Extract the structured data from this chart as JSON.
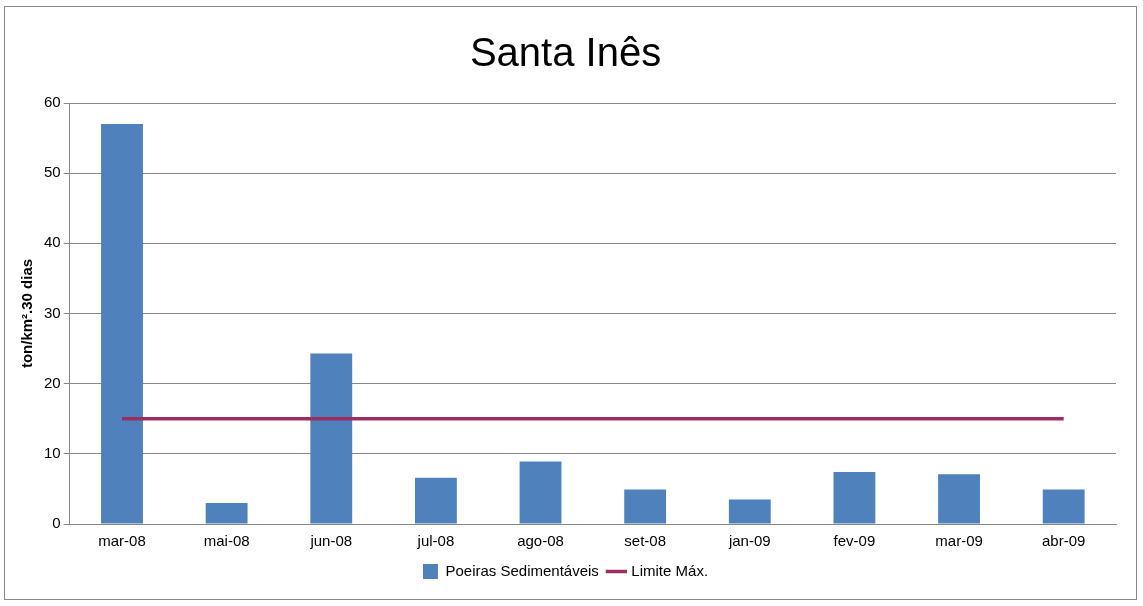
{
  "chart_data": {
    "type": "bar",
    "title": "Santa Inês",
    "ylabel": "ton/km².30 dias",
    "categories": [
      "mar-08",
      "mai-08",
      "jun-08",
      "jul-08",
      "ago-08",
      "set-08",
      "jan-09",
      "fev-09",
      "mar-09",
      "abr-09"
    ],
    "series": [
      {
        "name": "Poeiras Sedimentáveis",
        "color": "#4f81bd",
        "values": [
          57,
          3,
          24.3,
          6.6,
          8.9,
          4.9,
          3.5,
          7.4,
          7.1,
          4.9
        ]
      },
      {
        "name": "Limite Máx.",
        "type": "line",
        "color": "#9b2d5f",
        "values": [
          15,
          15,
          15,
          15,
          15,
          15,
          15,
          15,
          15,
          15
        ]
      }
    ],
    "ylim": [
      0,
      60
    ],
    "yticks": [
      0,
      10,
      20,
      30,
      40,
      50,
      60
    ],
    "grid": "y",
    "legend": "bottom",
    "marker": "none",
    "line_style": "solid"
  }
}
